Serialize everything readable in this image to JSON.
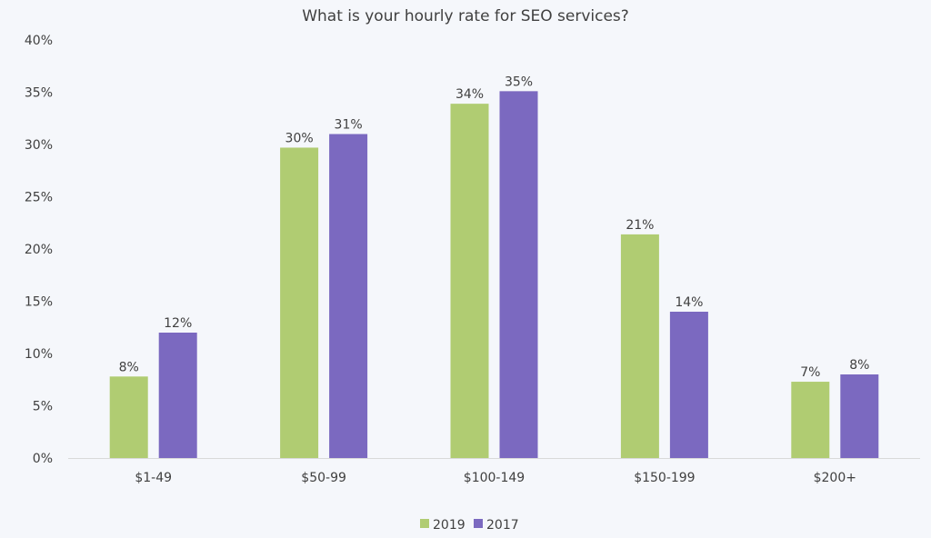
{
  "chart_data": {
    "type": "bar",
    "title": "What is your hourly rate for SEO services?",
    "xlabel": "",
    "ylabel": "",
    "categories": [
      "$1-49",
      "$50-99",
      "$100-149",
      "$150-199",
      "$200+"
    ],
    "series": [
      {
        "name": "2019",
        "color": "#b0cc72",
        "values": [
          7.8,
          29.7,
          33.9,
          21.4,
          7.3
        ],
        "labels": [
          "8%",
          "30%",
          "34%",
          "21%",
          "7%"
        ]
      },
      {
        "name": "2017",
        "color": "#7b69c0",
        "values": [
          12.0,
          31.0,
          35.1,
          14.0,
          8.0
        ],
        "labels": [
          "12%",
          "31%",
          "35%",
          "14%",
          "8%"
        ]
      }
    ],
    "ylim": [
      0,
      40
    ],
    "yticks": [
      "0%",
      "5%",
      "10%",
      "15%",
      "20%",
      "25%",
      "30%",
      "35%",
      "40%"
    ],
    "grid": false,
    "legend": "bottom-center"
  }
}
